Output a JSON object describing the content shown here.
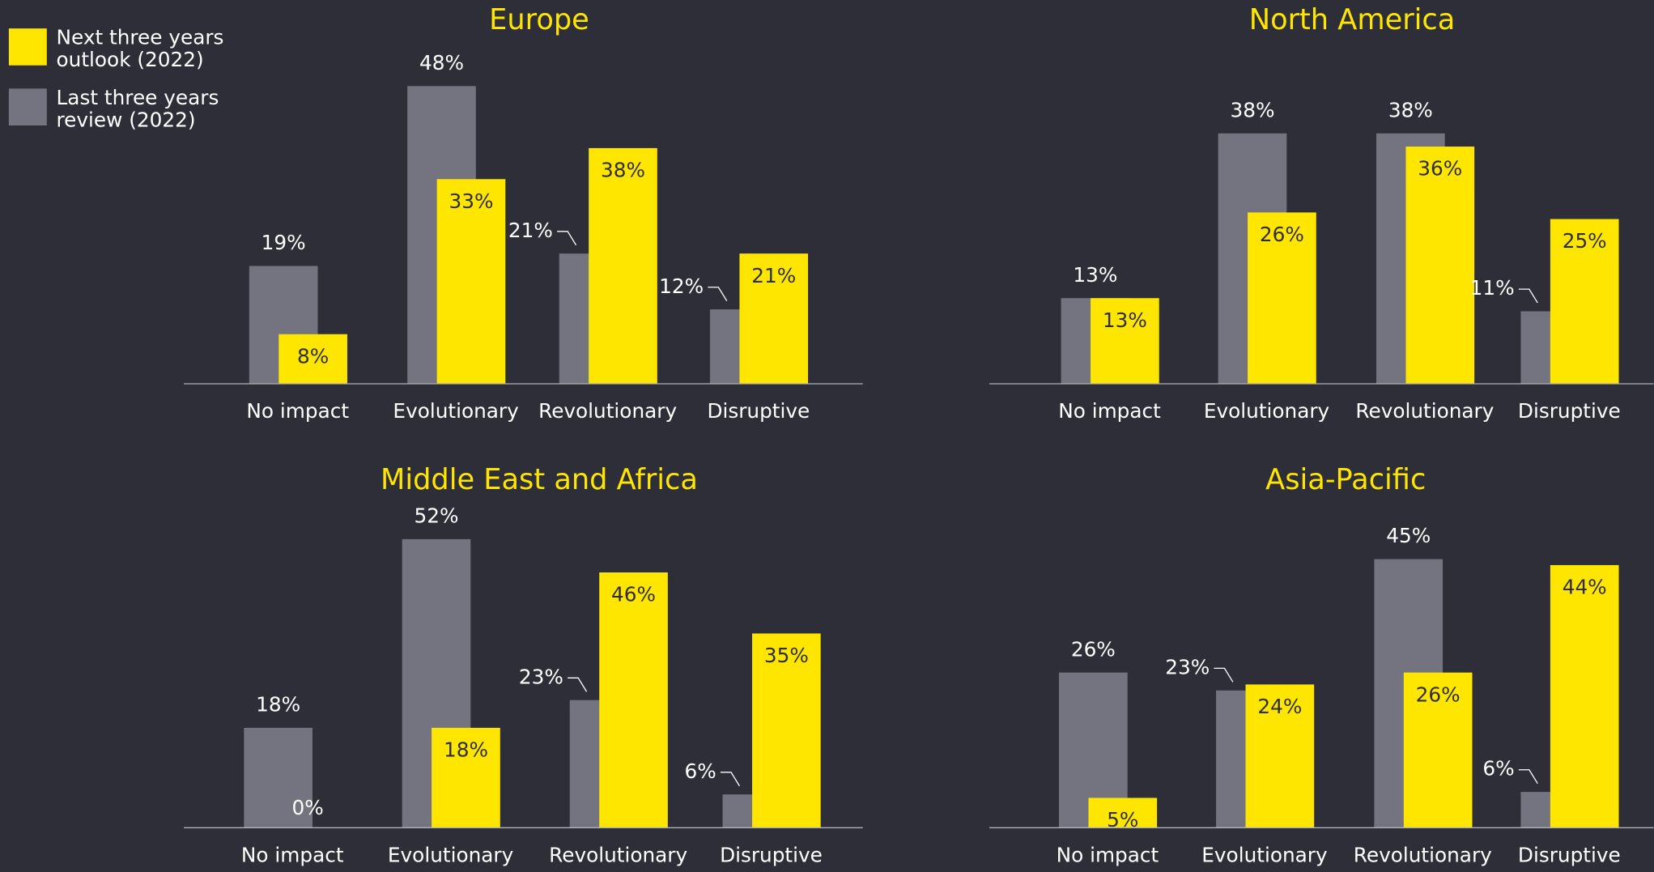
{
  "legend": [
    {
      "name": "Next three years outlook (2022)",
      "color": "#ffe600"
    },
    {
      "name": "Last three years review (2022)",
      "color": "#747480"
    }
  ],
  "chart_data": [
    {
      "type": "bar",
      "title": "Europe",
      "categories": [
        "No impact",
        "Evolutionary",
        "Revolutionary",
        "Disruptive"
      ],
      "ylim": [
        0,
        51
      ],
      "series": [
        {
          "values": [
            8,
            33,
            38,
            21
          ],
          "value_labels": [
            "8%",
            "33%",
            "38%",
            "21%"
          ]
        },
        {
          "values": [
            19,
            48,
            21,
            12
          ],
          "value_labels": [
            "19%",
            "48%",
            "21%",
            "12%"
          ]
        }
      ]
    },
    {
      "type": "bar",
      "title": "North America",
      "categories": [
        "No impact",
        "Evolutionary",
        "Revolutionary",
        "Disruptive"
      ],
      "ylim": [
        0,
        48
      ],
      "series": [
        {
          "values": [
            13,
            26,
            36,
            25
          ],
          "value_labels": [
            "13%",
            "26%",
            "36%",
            "25%"
          ]
        },
        {
          "values": [
            13,
            38,
            38,
            11
          ],
          "value_labels": [
            "13%",
            "38%",
            "38%",
            "11%"
          ]
        }
      ]
    },
    {
      "type": "bar",
      "title": "Middle East and Africa",
      "categories": [
        "No impact",
        "Evolutionary",
        "Revolutionary",
        "Disruptive"
      ],
      "ylim": [
        0,
        57
      ],
      "series": [
        {
          "values": [
            0,
            18,
            46,
            35
          ],
          "value_labels": [
            "0%",
            "18%",
            "46%",
            "35%"
          ]
        },
        {
          "values": [
            18,
            52,
            23,
            6
          ],
          "value_labels": [
            "18%",
            "52%",
            "23%",
            "6%"
          ]
        }
      ]
    },
    {
      "type": "bar",
      "title": "Asia-Pacific",
      "categories": [
        "No impact",
        "Evolutionary",
        "Revolutionary",
        "Disruptive"
      ],
      "ylim": [
        0,
        53
      ],
      "series": [
        {
          "values": [
            5,
            24,
            26,
            44
          ],
          "value_labels": [
            "5%",
            "24%",
            "26%",
            "44%"
          ]
        },
        {
          "values": [
            26,
            23,
            45,
            6
          ],
          "value_labels": [
            "26%",
            "23%",
            "45%",
            "6%"
          ]
        }
      ]
    }
  ]
}
